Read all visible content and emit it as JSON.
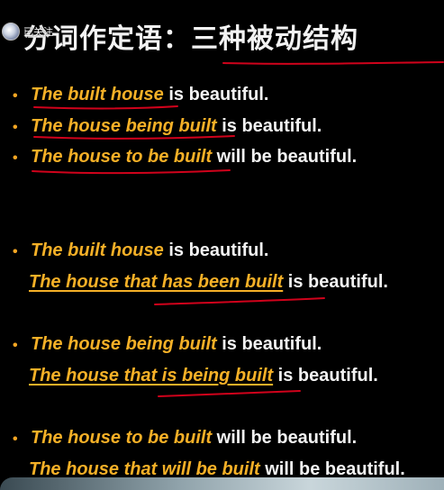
{
  "header": {
    "title": "分词作定语：三种被动结构",
    "follow_label": "已关注"
  },
  "lines": [
    {
      "phrase": "The built house",
      "rest": " is beautiful."
    },
    {
      "phrase": "The house being built",
      "rest": " is beautiful."
    },
    {
      "phrase": "The house to be built",
      "rest": " will be beautiful."
    },
    {
      "phrase": "The built house",
      "rest": " is beautiful."
    },
    {
      "phrase": "The house that has been built",
      "rest": " is beautiful."
    },
    {
      "phrase": "The house being built",
      "rest": " is beautiful."
    },
    {
      "phrase": "The house that is being built",
      "rest": " is beautiful."
    },
    {
      "phrase": "The house to be built",
      "rest": " will be beautiful."
    },
    {
      "phrase": "The house that will be built",
      "rest": " will be beautiful."
    }
  ],
  "bullet_symbol": "•",
  "colors": {
    "background": "#000000",
    "text": "#f2f2f2",
    "highlight": "#f5b027",
    "annotation": "#d0021b"
  }
}
